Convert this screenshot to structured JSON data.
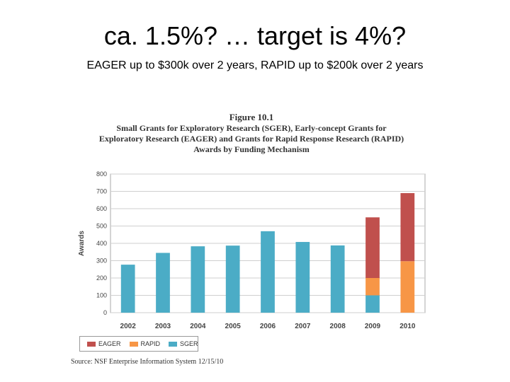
{
  "slide": {
    "title": "ca. 1.5%? … target is 4%?",
    "subtitle": "EAGER up to $300k over 2 years, RAPID up to $200k over 2 years"
  },
  "figure": {
    "number": "Figure 10.1",
    "title_lines": [
      "Small Grants for Exploratory Research (SGER), Early-concept Grants for",
      "Exploratory Research (EAGER) and Grants for Rapid Response Research (RAPID)",
      "Awards by Funding Mechanism"
    ],
    "source": "Source: NSF Enterprise Information System 12/15/10"
  },
  "chart_data": {
    "type": "bar",
    "stacked": true,
    "categories": [
      "2002",
      "2003",
      "2004",
      "2005",
      "2006",
      "2007",
      "2008",
      "2009",
      "2010"
    ],
    "series": [
      {
        "name": "SGER",
        "color": "#4bacc6",
        "values": [
          277,
          345,
          383,
          387,
          470,
          408,
          388,
          100,
          0
        ]
      },
      {
        "name": "RAPID",
        "color": "#f79646",
        "values": [
          0,
          0,
          0,
          0,
          0,
          0,
          0,
          100,
          297
        ]
      },
      {
        "name": "EAGER",
        "color": "#c0504d",
        "values": [
          0,
          0,
          0,
          0,
          0,
          0,
          0,
          350,
          393
        ]
      }
    ],
    "legend_order": [
      "EAGER",
      "RAPID",
      "SGER"
    ],
    "ylabel": "Awards",
    "xlabel": "",
    "ylim": [
      0,
      800
    ],
    "yticks": [
      0,
      100,
      200,
      300,
      400,
      500,
      600,
      700,
      800
    ],
    "grid": true,
    "legend_position": "bottom-left"
  }
}
